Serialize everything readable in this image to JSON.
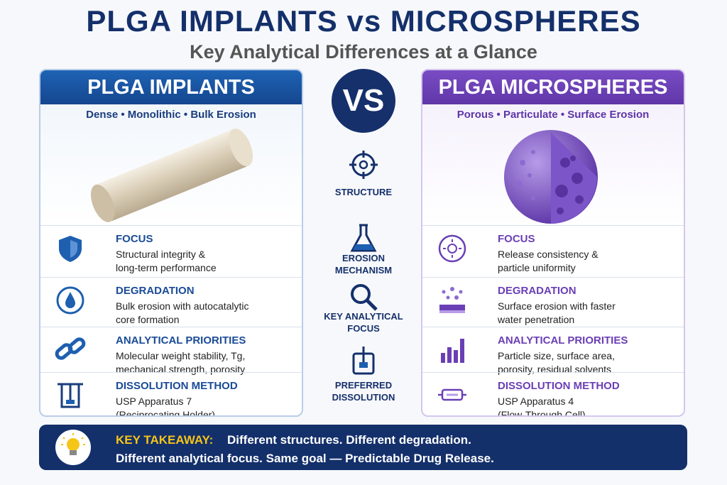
{
  "header": {
    "title": "PLGA IMPLANTS vs MICROSPHERES",
    "subtitle": "Key Analytical Differences at a Glance"
  },
  "left": {
    "title": "PLGA IMPLANTS",
    "tagline": "Dense • Monolithic • Bulk Erosion",
    "rows": [
      {
        "heading": "FOCUS",
        "lines": [
          "Structural integrity &",
          "long-term performance"
        ]
      },
      {
        "heading": "DEGRADATION",
        "lines": [
          "Bulk erosion with autocatalytic",
          "core formation"
        ]
      },
      {
        "heading": "ANALYTICAL PRIORITIES",
        "lines": [
          "Molecular weight stability, Tg,",
          "mechanical strength, porosity"
        ]
      },
      {
        "heading": "DISSOLUTION METHOD",
        "lines": [
          "USP Apparatus 7",
          "(Reciprocating Holder)"
        ]
      }
    ]
  },
  "center": {
    "vs": "VS",
    "labels": [
      [
        "STRUCTURE"
      ],
      [
        "EROSION",
        "MECHANISM"
      ],
      [
        "KEY ANALYTICAL",
        "FOCUS"
      ],
      [
        "PREFERRED",
        "DISSOLUTION"
      ]
    ]
  },
  "right": {
    "title": "PLGA MICROSPHERES",
    "tagline": "Porous • Particulate • Surface Erosion",
    "rows": [
      {
        "heading": "FOCUS",
        "lines": [
          "Release consistency &",
          "particle uniformity"
        ]
      },
      {
        "heading": "DEGRADATION",
        "lines": [
          "Surface erosion with faster",
          "water penetration"
        ]
      },
      {
        "heading": "ANALYTICAL PRIORITIES",
        "lines": [
          "Particle size, surface area,",
          "porosity, residual solvents"
        ]
      },
      {
        "heading": "DISSOLUTION METHOD",
        "lines": [
          "USP Apparatus 4",
          "(Flow-Through Cell)"
        ]
      }
    ]
  },
  "footer": {
    "label": "KEY TAKEAWAY:",
    "lines": [
      "Different structures. Different degradation.",
      "Different analytical focus. Same goal — Predictable Drug Release."
    ]
  }
}
